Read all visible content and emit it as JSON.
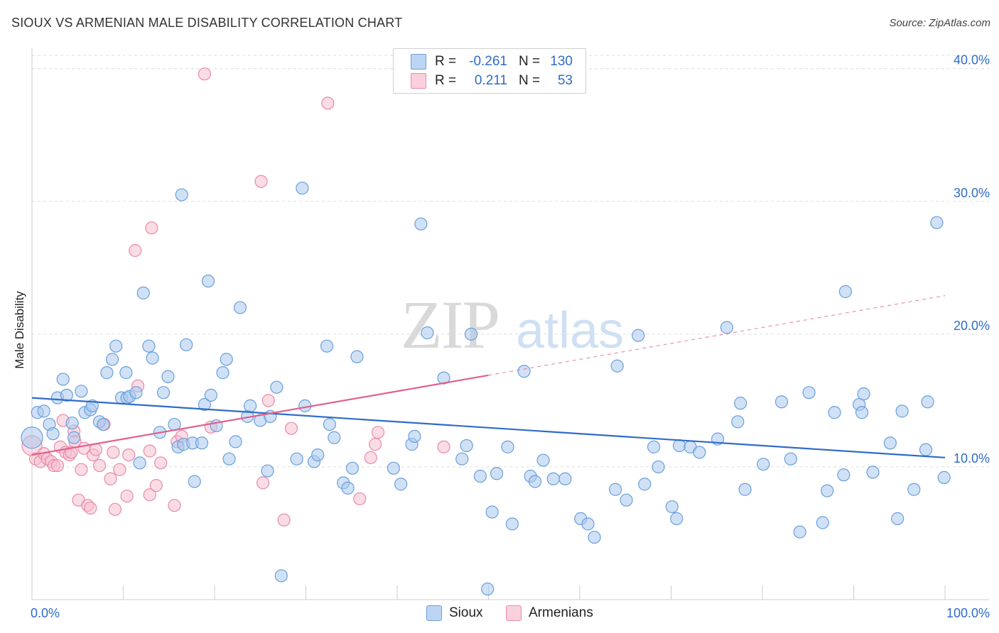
{
  "title": "SIOUX VS ARMENIAN MALE DISABILITY CORRELATION CHART",
  "source": "Source: ZipAtlas.com",
  "legend": {
    "rows": [
      {
        "r_label": "R =",
        "r_value": "-0.261",
        "n_label": "N =",
        "n_value": "130"
      },
      {
        "r_label": "R =",
        "r_value": "0.211",
        "n_label": "N =",
        "n_value": "53"
      }
    ]
  },
  "watermark": {
    "zip": "ZIP",
    "atlas": "atlas"
  },
  "colors": {
    "sioux_fill": "#a9c8ef",
    "sioux_stroke": "#6a9fdb",
    "sioux_line": "#2f6cc8",
    "armenian_fill": "#f6bfd0",
    "armenian_stroke": "#e98aa9",
    "armenian_line": "#e0618e",
    "axis_label": "#2f6cc8",
    "grid": "#dcdcdc"
  },
  "chart_data": {
    "type": "scatter",
    "title": "SIOUX VS ARMENIAN MALE DISABILITY CORRELATION CHART",
    "xlabel": "",
    "ylabel": "Male Disability",
    "xlim": [
      0,
      100
    ],
    "ylim": [
      0,
      41
    ],
    "x_tick_labels": [
      "0.0%",
      "100.0%"
    ],
    "y_ticks": [
      10,
      20,
      30,
      40
    ],
    "y_tick_labels": [
      "10.0%",
      "20.0%",
      "30.0%",
      "40.0%"
    ],
    "grid": "horizontal dashed",
    "legend_position": "top-center",
    "series": [
      {
        "name": "Sioux",
        "r": -0.261,
        "n": 130,
        "trend": {
          "x0": 0,
          "y0": 15.2,
          "x1": 100,
          "y1": 10.7
        },
        "points": [
          [
            0,
            12.2
          ],
          [
            0.6,
            14.1
          ],
          [
            1.3,
            14.2
          ],
          [
            1.9,
            13.2
          ],
          [
            2.3,
            12.5
          ],
          [
            2.8,
            15.2
          ],
          [
            3.4,
            16.6
          ],
          [
            3.8,
            15.4
          ],
          [
            4.4,
            13.3
          ],
          [
            4.6,
            12.2
          ],
          [
            5.4,
            15.7
          ],
          [
            5.8,
            14.1
          ],
          [
            6.4,
            14.3
          ],
          [
            6.6,
            14.6
          ],
          [
            7.4,
            13.4
          ],
          [
            7.8,
            13.2
          ],
          [
            8.2,
            17.1
          ],
          [
            8.8,
            18.1
          ],
          [
            9.2,
            19.1
          ],
          [
            9.8,
            15.2
          ],
          [
            10.4,
            15.2
          ],
          [
            10.3,
            17.1
          ],
          [
            10.7,
            15.3
          ],
          [
            11.4,
            15.6
          ],
          [
            11.8,
            10.3
          ],
          [
            12.2,
            23.1
          ],
          [
            12.8,
            19.1
          ],
          [
            13.2,
            18.2
          ],
          [
            14.0,
            12.6
          ],
          [
            14.4,
            15.6
          ],
          [
            14.9,
            16.8
          ],
          [
            15.6,
            13.2
          ],
          [
            16.0,
            11.5
          ],
          [
            16.4,
            30.5
          ],
          [
            16.6,
            11.7
          ],
          [
            16.9,
            19.2
          ],
          [
            17.6,
            11.8
          ],
          [
            17.8,
            8.9
          ],
          [
            18.6,
            11.8
          ],
          [
            18.9,
            14.7
          ],
          [
            19.3,
            24.0
          ],
          [
            19.6,
            15.4
          ],
          [
            20.2,
            13.1
          ],
          [
            20.9,
            17.1
          ],
          [
            21.3,
            18.1
          ],
          [
            21.6,
            10.6
          ],
          [
            22.3,
            11.9
          ],
          [
            22.8,
            22.0
          ],
          [
            23.6,
            13.8
          ],
          [
            23.9,
            14.6
          ],
          [
            25.0,
            13.5
          ],
          [
            25.8,
            9.7
          ],
          [
            26.1,
            13.8
          ],
          [
            26.8,
            16.0
          ],
          [
            27.3,
            1.8
          ],
          [
            29.0,
            10.6
          ],
          [
            29.6,
            31.0
          ],
          [
            29.9,
            14.6
          ],
          [
            30.9,
            10.4
          ],
          [
            31.3,
            10.9
          ],
          [
            32.3,
            19.1
          ],
          [
            32.6,
            13.2
          ],
          [
            33.1,
            12.2
          ],
          [
            34.1,
            8.8
          ],
          [
            34.6,
            8.4
          ],
          [
            35.1,
            9.9
          ],
          [
            35.6,
            18.3
          ],
          [
            39.6,
            9.9
          ],
          [
            40.4,
            8.7
          ],
          [
            41.6,
            11.7
          ],
          [
            41.9,
            12.3
          ],
          [
            42.6,
            28.3
          ],
          [
            43.3,
            20.1
          ],
          [
            45.1,
            16.7
          ],
          [
            47.1,
            10.6
          ],
          [
            47.6,
            11.6
          ],
          [
            48.1,
            20.0
          ],
          [
            49.1,
            9.3
          ],
          [
            49.9,
            0.8
          ],
          [
            50.4,
            6.6
          ],
          [
            50.9,
            9.5
          ],
          [
            52.1,
            11.5
          ],
          [
            52.6,
            5.7
          ],
          [
            53.9,
            17.2
          ],
          [
            54.6,
            9.3
          ],
          [
            55.1,
            8.9
          ],
          [
            56.0,
            10.5
          ],
          [
            57.1,
            9.1
          ],
          [
            58.4,
            9.1
          ],
          [
            60.1,
            6.1
          ],
          [
            60.9,
            5.7
          ],
          [
            61.6,
            4.7
          ],
          [
            63.9,
            8.3
          ],
          [
            64.1,
            17.6
          ],
          [
            65.1,
            7.5
          ],
          [
            66.4,
            19.9
          ],
          [
            67.1,
            8.7
          ],
          [
            68.1,
            11.5
          ],
          [
            68.6,
            10.0
          ],
          [
            70.1,
            7.0
          ],
          [
            70.6,
            6.1
          ],
          [
            70.9,
            11.6
          ],
          [
            72.1,
            11.5
          ],
          [
            73.1,
            11.1
          ],
          [
            75.1,
            12.1
          ],
          [
            76.1,
            20.5
          ],
          [
            77.3,
            13.4
          ],
          [
            77.6,
            14.8
          ],
          [
            78.1,
            8.3
          ],
          [
            80.1,
            10.2
          ],
          [
            82.1,
            14.9
          ],
          [
            83.1,
            10.6
          ],
          [
            84.1,
            5.1
          ],
          [
            85.1,
            15.6
          ],
          [
            86.6,
            5.8
          ],
          [
            87.1,
            8.2
          ],
          [
            87.9,
            14.1
          ],
          [
            88.9,
            9.4
          ],
          [
            89.1,
            23.2
          ],
          [
            90.6,
            14.7
          ],
          [
            90.9,
            14.1
          ],
          [
            91.1,
            15.5
          ],
          [
            92.1,
            9.6
          ],
          [
            94.0,
            11.8
          ],
          [
            94.8,
            6.1
          ],
          [
            95.3,
            14.2
          ],
          [
            96.6,
            8.3
          ],
          [
            97.9,
            11.3
          ],
          [
            98.1,
            14.9
          ],
          [
            99.1,
            28.4
          ],
          [
            99.9,
            9.2
          ]
        ]
      },
      {
        "name": "Armenians",
        "r": 0.211,
        "n": 53,
        "trend": {
          "x0": 0,
          "y0": 10.9,
          "x1": 50,
          "y1": 16.9,
          "dash_to_x": 100,
          "dash_to_y": 22.9
        },
        "points": [
          [
            0,
            11.6
          ],
          [
            0.4,
            10.6
          ],
          [
            0.9,
            10.4
          ],
          [
            1.3,
            11.0
          ],
          [
            1.7,
            10.6
          ],
          [
            2.1,
            10.4
          ],
          [
            2.4,
            10.1
          ],
          [
            2.8,
            10.1
          ],
          [
            3.1,
            11.5
          ],
          [
            3.4,
            13.5
          ],
          [
            3.7,
            11.1
          ],
          [
            4.1,
            10.9
          ],
          [
            4.3,
            11.1
          ],
          [
            4.6,
            12.7
          ],
          [
            4.7,
            11.9
          ],
          [
            5.1,
            7.5
          ],
          [
            5.4,
            9.8
          ],
          [
            5.7,
            11.4
          ],
          [
            6.1,
            7.1
          ],
          [
            6.4,
            6.9
          ],
          [
            6.7,
            10.9
          ],
          [
            7.0,
            11.3
          ],
          [
            7.4,
            10.1
          ],
          [
            7.9,
            13.2
          ],
          [
            8.6,
            9.1
          ],
          [
            8.9,
            11.1
          ],
          [
            9.1,
            6.8
          ],
          [
            9.6,
            9.8
          ],
          [
            10.4,
            7.8
          ],
          [
            10.6,
            10.9
          ],
          [
            11.3,
            26.3
          ],
          [
            11.6,
            16.1
          ],
          [
            12.9,
            11.2
          ],
          [
            12.9,
            7.9
          ],
          [
            13.1,
            28.0
          ],
          [
            13.6,
            8.6
          ],
          [
            14.1,
            10.3
          ],
          [
            15.6,
            7.1
          ],
          [
            15.9,
            11.9
          ],
          [
            16.4,
            12.3
          ],
          [
            18.9,
            39.6
          ],
          [
            19.6,
            13.0
          ],
          [
            25.1,
            31.5
          ],
          [
            25.3,
            8.8
          ],
          [
            25.9,
            15.0
          ],
          [
            27.6,
            6.0
          ],
          [
            28.4,
            12.9
          ],
          [
            32.4,
            37.4
          ],
          [
            35.9,
            7.6
          ],
          [
            37.1,
            10.7
          ],
          [
            37.6,
            11.7
          ],
          [
            37.9,
            12.6
          ],
          [
            45.1,
            11.5
          ]
        ]
      }
    ]
  },
  "bottom_legend": [
    {
      "name": "Sioux"
    },
    {
      "name": "Armenians"
    }
  ]
}
